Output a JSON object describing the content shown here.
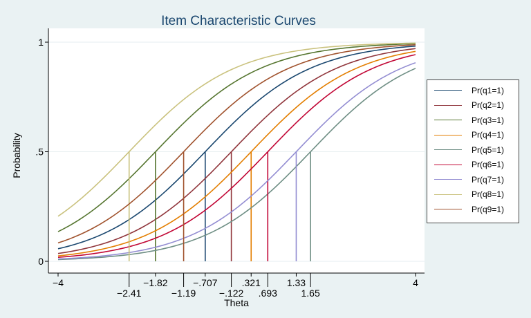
{
  "chart_data": {
    "type": "line",
    "title": "Item Characteristic Curves",
    "xlabel": "Theta",
    "ylabel": "Probability",
    "xlim": [
      -4,
      4
    ],
    "ylim": [
      0,
      1
    ],
    "yticks": [
      {
        "value": 0,
        "label": "0"
      },
      {
        "value": 0.5,
        "label": ".5"
      },
      {
        "value": 1,
        "label": "1"
      }
    ],
    "xticks_top": [
      {
        "value": -4,
        "label": "−4"
      },
      {
        "value": -1.82,
        "label": "−1.82"
      },
      {
        "value": -0.707,
        "label": "−.707"
      },
      {
        "value": 0.321,
        "label": ".321"
      },
      {
        "value": 1.33,
        "label": "1.33"
      },
      {
        "value": 4,
        "label": "4"
      }
    ],
    "xticks_bottom": [
      {
        "value": -2.41,
        "label": "−2.41"
      },
      {
        "value": -1.19,
        "label": "−1.19"
      },
      {
        "value": -0.122,
        "label": "−.122"
      },
      {
        "value": 0.693,
        "label": ".693"
      },
      {
        "value": 1.65,
        "label": "1.65"
      }
    ],
    "curve_model": "1PL logistic, common discrimination a = 0.85, P(theta) = 1/(1+exp(-a(theta-b)))",
    "discrimination": 0.85,
    "legend_position": "right",
    "series": [
      {
        "name": "Pr(q1=1)",
        "difficulty": -0.707,
        "color": "#1a476f"
      },
      {
        "name": "Pr(q2=1)",
        "difficulty": -0.122,
        "color": "#90353b"
      },
      {
        "name": "Pr(q3=1)",
        "difficulty": -1.82,
        "color": "#55752f"
      },
      {
        "name": "Pr(q4=1)",
        "difficulty": 0.321,
        "color": "#e37e00"
      },
      {
        "name": "Pr(q5=1)",
        "difficulty": 1.65,
        "color": "#6e8e84"
      },
      {
        "name": "Pr(q6=1)",
        "difficulty": 0.693,
        "color": "#c10534"
      },
      {
        "name": "Pr(q7=1)",
        "difficulty": 1.33,
        "color": "#938dd2"
      },
      {
        "name": "Pr(q8=1)",
        "difficulty": -2.41,
        "color": "#cac27e"
      },
      {
        "name": "Pr(q9=1)",
        "difficulty": -1.19,
        "color": "#a0522d"
      }
    ]
  }
}
